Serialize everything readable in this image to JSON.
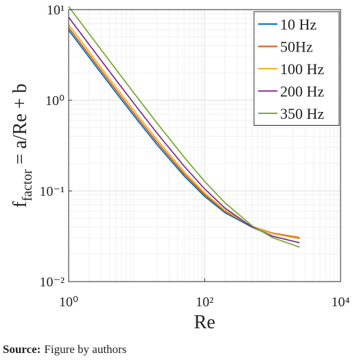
{
  "chart_data": {
    "type": "line",
    "ylabel": {
      "symbol": "f",
      "subscript": "factor",
      "rest": " = a/Re + b"
    },
    "xlabel": "Re",
    "xscale": "log",
    "yscale": "log",
    "grid": true,
    "legend": "upper right",
    "x": [
      1,
      2,
      5,
      10,
      20,
      50,
      100,
      200,
      500,
      1000,
      2500
    ],
    "series": [
      {
        "name": "10 Hz",
        "color": "#0072bd",
        "values": [
          5.928,
          2.978,
          1.208,
          0.618,
          0.323,
          0.146,
          0.087,
          0.0575,
          0.0398,
          0.0339,
          0.0304
        ]
      },
      {
        "name": "50Hz",
        "color": "#d95319",
        "values": [
          6.328,
          3.178,
          1.288,
          0.658,
          0.343,
          0.154,
          0.091,
          0.0595,
          0.0406,
          0.0343,
          0.0305
        ]
      },
      {
        "name": "100 Hz",
        "color": "#edb120",
        "values": [
          6.827,
          3.427,
          1.387,
          0.707,
          0.367,
          0.163,
          0.095,
          0.061,
          0.0406,
          0.0338,
          0.0297
        ]
      },
      {
        "name": "200 Hz",
        "color": "#7e2f8e",
        "values": [
          8.2235,
          4.1235,
          1.6635,
          0.8435,
          0.4335,
          0.1875,
          0.1055,
          0.0645,
          0.0399,
          0.0317,
          0.0268
        ]
      },
      {
        "name": "350 Hz",
        "color": "#77ac30",
        "values": [
          10.8197,
          5.4197,
          2.1797,
          1.0997,
          0.5597,
          0.2357,
          0.1277,
          0.0737,
          0.0413,
          0.0305,
          0.024
        ]
      }
    ],
    "xlim": [
      1,
      10000
    ],
    "xticks": [
      {
        "value": 1,
        "label": "10⁰"
      },
      {
        "value": 100,
        "label": "10²"
      },
      {
        "value": 10000,
        "label": "10⁴"
      }
    ],
    "ylim": [
      0.01,
      10
    ],
    "yticks": [
      {
        "value": 0.01,
        "label": "10⁻²"
      },
      {
        "value": 0.1,
        "label": "10⁻¹"
      },
      {
        "value": 1,
        "label": "10⁰"
      },
      {
        "value": 10,
        "label": "10¹"
      }
    ]
  },
  "source": {
    "label": "Source:",
    "text": "Figure by authors"
  }
}
